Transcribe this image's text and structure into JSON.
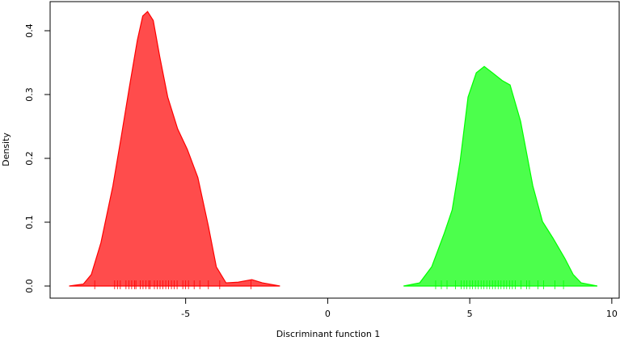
{
  "chart_data": {
    "type": "density",
    "xlabel": "Discriminant function 1",
    "ylabel": "Density",
    "xlim": [
      -9.77,
      10.26
    ],
    "ylim": [
      -0.019,
      0.4456
    ],
    "xticks": [
      -5,
      0,
      5,
      10
    ],
    "yticks": [
      {
        "value": 0,
        "label": "0.0"
      },
      0.1,
      0.2,
      0.3,
      0.4
    ],
    "series": [
      {
        "color": "#ff0000",
        "alpha": 0.7,
        "x": [
          -9.1,
          -8.6,
          -8.32,
          -7.98,
          -7.56,
          -7.27,
          -6.99,
          -6.7,
          -6.51,
          -6.34,
          -6.14,
          -5.91,
          -5.63,
          -5.28,
          -4.94,
          -4.57,
          -4.2,
          -3.92,
          -3.58,
          -3.15,
          -2.67,
          -2.3,
          -1.68
        ],
        "values": [
          0,
          0.003,
          0.018,
          0.068,
          0.157,
          0.233,
          0.309,
          0.385,
          0.423,
          0.43,
          0.416,
          0.359,
          0.296,
          0.246,
          0.214,
          0.17,
          0.094,
          0.03,
          0.005,
          0.006,
          0.01,
          0.005,
          0
        ],
        "rug": [
          -8.2,
          -7.5,
          -7.4,
          -7.3,
          -7.1,
          -7.0,
          -6.9,
          -6.8,
          -6.75,
          -6.6,
          -6.5,
          -6.4,
          -6.3,
          -6.25,
          -6.1,
          -6.0,
          -5.9,
          -5.8,
          -5.7,
          -5.6,
          -5.5,
          -5.4,
          -5.3,
          -5.1,
          -5.0,
          -4.9,
          -4.7,
          -4.5,
          -4.2,
          -3.8,
          -2.7
        ]
      },
      {
        "color": "#00ff00",
        "alpha": 0.7,
        "x": [
          2.67,
          3.24,
          3.66,
          4.09,
          4.38,
          4.66,
          4.94,
          5.23,
          5.51,
          5.8,
          6.14,
          6.42,
          6.79,
          7.22,
          7.56,
          7.93,
          8.35,
          8.64,
          8.92,
          9.49
        ],
        "values": [
          0,
          0.005,
          0.03,
          0.081,
          0.119,
          0.195,
          0.296,
          0.334,
          0.344,
          0.334,
          0.322,
          0.315,
          0.258,
          0.157,
          0.101,
          0.075,
          0.043,
          0.018,
          0.005,
          0
        ],
        "rug": [
          3.8,
          4.0,
          4.2,
          4.5,
          4.7,
          4.8,
          4.9,
          5.0,
          5.1,
          5.2,
          5.3,
          5.4,
          5.5,
          5.6,
          5.7,
          5.8,
          5.9,
          6.0,
          6.1,
          6.2,
          6.3,
          6.4,
          6.5,
          6.6,
          6.8,
          7.0,
          7.1,
          7.4,
          7.6,
          8.0,
          8.3
        ]
      }
    ]
  }
}
